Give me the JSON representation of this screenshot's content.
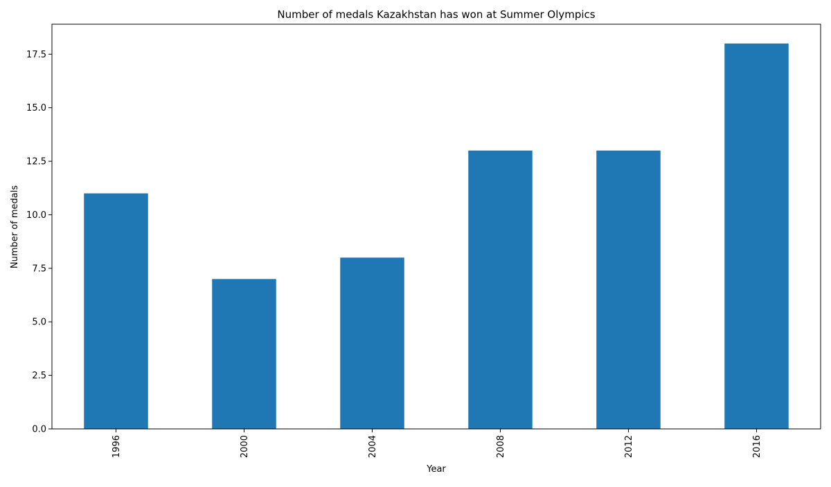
{
  "chart_data": {
    "type": "bar",
    "title": "Number of medals Kazakhstan has won at Summer Olympics",
    "xlabel": "Year",
    "ylabel": "Number of medals",
    "categories": [
      "1996",
      "2000",
      "2004",
      "2008",
      "2012",
      "2016"
    ],
    "values": [
      11,
      7,
      8,
      13,
      13,
      18
    ],
    "ylim": [
      0,
      18.9
    ],
    "yticks": [
      0,
      2.5,
      5,
      7.5,
      10,
      12.5,
      15,
      17.5
    ],
    "ytick_labels": [
      "0.0",
      "2.5",
      "5.0",
      "7.5",
      "10.0",
      "12.5",
      "15.0",
      "17.5"
    ],
    "bar_color": "#1f77b4",
    "grid": false,
    "legend": "none",
    "xtick_rotation": "vertical"
  }
}
